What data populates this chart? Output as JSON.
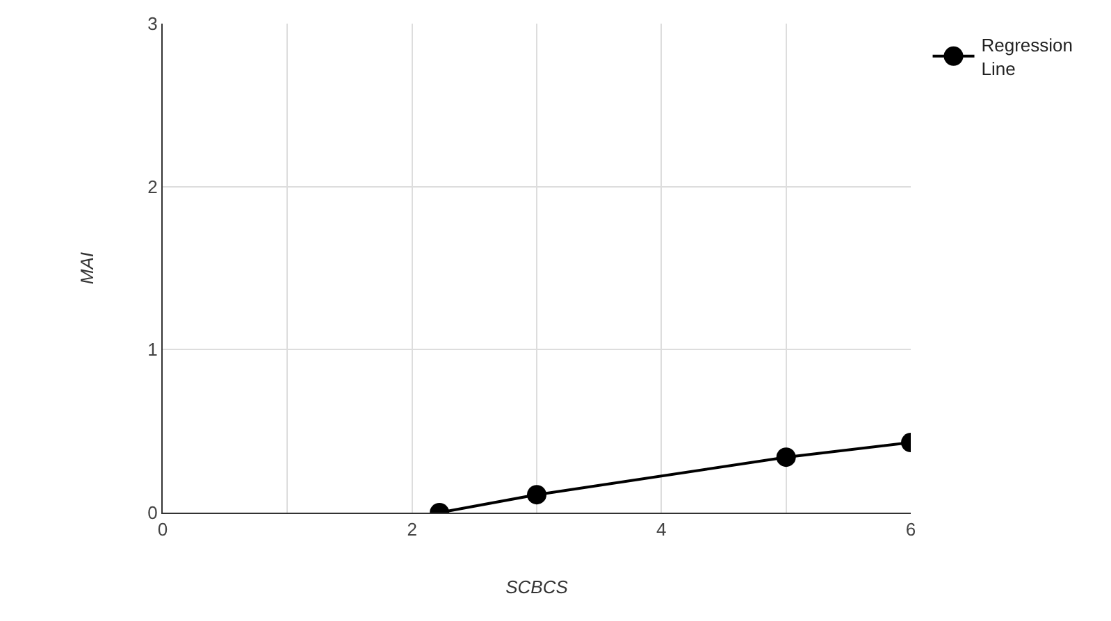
{
  "chart_data": {
    "type": "line",
    "xlabel": "SCBCS",
    "ylabel": "MAI",
    "x": [
      2.22,
      3,
      5,
      6
    ],
    "series": [
      {
        "name": "Regression Line",
        "color": "#000000",
        "values": [
          0,
          0.11,
          0.34,
          0.43
        ]
      }
    ],
    "xlim": [
      0,
      6
    ],
    "xticks": [
      0,
      {
        "value": 1,
        "label": null
      },
      2,
      {
        "value": 3,
        "label": null
      },
      4,
      {
        "value": 5,
        "label": null
      },
      6
    ],
    "ylim": [
      0,
      3
    ],
    "yticks": [
      0,
      1,
      2,
      3
    ],
    "grid": true,
    "legend": "top right",
    "marker": "circle",
    "line_style": "solid"
  }
}
